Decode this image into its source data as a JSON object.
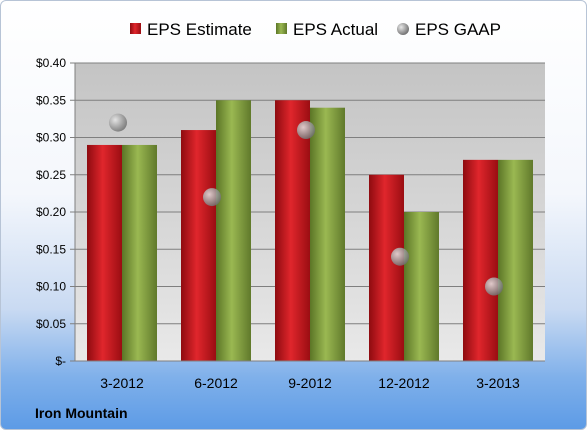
{
  "chart_data": {
    "type": "bar",
    "categories": [
      "3-2012",
      "6-2012",
      "9-2012",
      "12-2012",
      "3-2013"
    ],
    "series": [
      {
        "name": "EPS Estimate",
        "values": [
          0.29,
          0.31,
          0.35,
          0.25,
          0.27
        ],
        "color": "#c8161c"
      },
      {
        "name": "EPS Actual",
        "values": [
          0.29,
          0.35,
          0.34,
          0.2,
          0.27
        ],
        "color": "#7e9b3a"
      },
      {
        "name": "EPS GAAP",
        "values": [
          0.32,
          0.22,
          0.31,
          0.14,
          0.1
        ],
        "color": "#a6a6a6",
        "marker": "circle"
      }
    ],
    "ylim": [
      0,
      0.4
    ],
    "yticks": [
      0,
      0.05,
      0.1,
      0.15,
      0.2,
      0.25,
      0.3,
      0.35,
      0.4
    ],
    "ytick_labels": [
      "$-",
      "$0.05",
      "$0.10",
      "$0.15",
      "$0.20",
      "$0.25",
      "$0.30",
      "$0.35",
      "$0.40"
    ],
    "legend": "top",
    "grid": true
  },
  "footer": {
    "company": "Iron Mountain"
  }
}
